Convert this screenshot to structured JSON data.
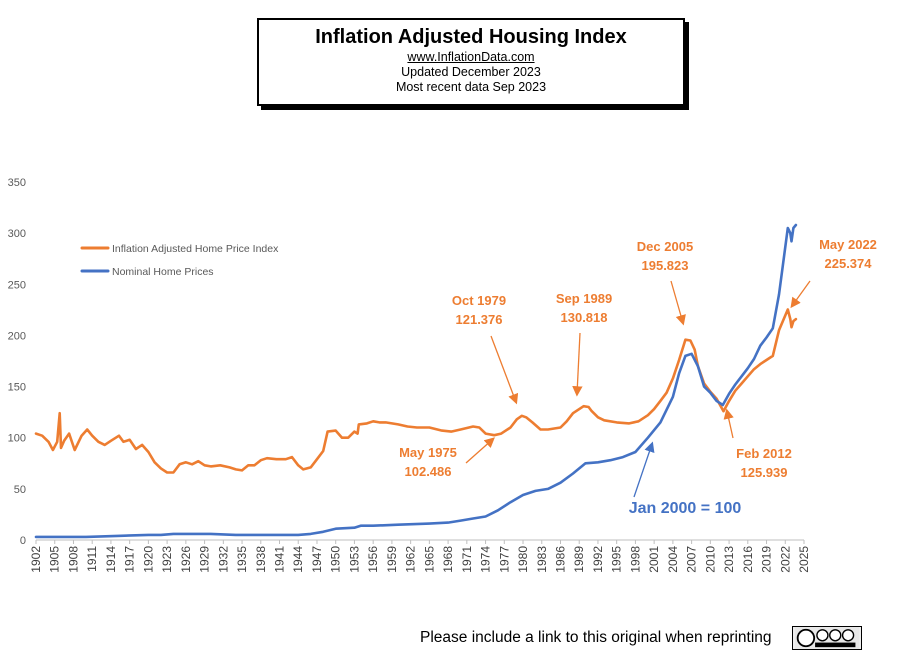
{
  "header": {
    "title": "Inflation Adjusted Housing Index",
    "website": "www.InflationData.com",
    "updated": "Updated  December 2023",
    "recent": "Most recent data Sep 2023"
  },
  "footer": {
    "note": "Please include a link to this original when reprinting"
  },
  "license_badge": "cc-by-nc-nd-icon",
  "colors": {
    "adjusted": "#ED7D31",
    "nominal": "#4472C4",
    "axis": "#555555"
  },
  "chart_data": {
    "type": "line",
    "xlim": [
      1902,
      2025
    ],
    "ylim": [
      0,
      350
    ],
    "yticks": [
      0,
      50,
      100,
      150,
      200,
      250,
      300,
      350
    ],
    "xticks": [
      "1902",
      "1905",
      "1908",
      "1911",
      "1914",
      "1917",
      "1920",
      "1923",
      "1926",
      "1929",
      "1932",
      "1935",
      "1938",
      "1941",
      "1944",
      "1947",
      "1950",
      "1953",
      "1956",
      "1959",
      "1962",
      "1965",
      "1968",
      "1971",
      "1974",
      "1977",
      "1980",
      "1983",
      "1986",
      "1989",
      "1992",
      "1995",
      "1998",
      "2001",
      "2004",
      "2007",
      "2010",
      "2013",
      "2016",
      "2019",
      "2022",
      "2025"
    ],
    "grid": false,
    "legend_position": "top-left",
    "series": [
      {
        "name": "Inflation Adjusted Home Price Index",
        "color": "#ED7D31",
        "points": [
          [
            1902,
            104
          ],
          [
            1903,
            102
          ],
          [
            1904,
            96
          ],
          [
            1904.7,
            88
          ],
          [
            1905.4,
            96
          ],
          [
            1905.8,
            124
          ],
          [
            1906.0,
            90
          ],
          [
            1906.5,
            97
          ],
          [
            1907.3,
            104
          ],
          [
            1908.2,
            88
          ],
          [
            1909.3,
            102
          ],
          [
            1910.2,
            108
          ],
          [
            1911.0,
            102
          ],
          [
            1912.0,
            96
          ],
          [
            1913.0,
            93
          ],
          [
            1914.0,
            97
          ],
          [
            1915.3,
            102
          ],
          [
            1916.0,
            96
          ],
          [
            1917.0,
            98
          ],
          [
            1918.0,
            89
          ],
          [
            1919.0,
            93
          ],
          [
            1920.0,
            86
          ],
          [
            1921.0,
            76
          ],
          [
            1922.0,
            70
          ],
          [
            1923.0,
            66
          ],
          [
            1924.0,
            66
          ],
          [
            1925.0,
            74
          ],
          [
            1926.0,
            76
          ],
          [
            1927.0,
            74
          ],
          [
            1928.0,
            77
          ],
          [
            1929.0,
            73
          ],
          [
            1930.0,
            72
          ],
          [
            1931.5,
            73
          ],
          [
            1933.0,
            71
          ],
          [
            1934.0,
            69
          ],
          [
            1935.0,
            68
          ],
          [
            1936.0,
            73
          ],
          [
            1937.0,
            73
          ],
          [
            1938.0,
            78
          ],
          [
            1939.0,
            80
          ],
          [
            1940.5,
            79
          ],
          [
            1942.0,
            79
          ],
          [
            1943.0,
            81
          ],
          [
            1944.0,
            73
          ],
          [
            1944.8,
            69
          ],
          [
            1946.0,
            71
          ],
          [
            1947.0,
            79
          ],
          [
            1948.0,
            87
          ],
          [
            1948.7,
            106
          ],
          [
            1950.0,
            107
          ],
          [
            1951.0,
            100
          ],
          [
            1952.0,
            100
          ],
          [
            1953.0,
            106
          ],
          [
            1953.5,
            104
          ],
          [
            1953.7,
            113
          ],
          [
            1955.0,
            114
          ],
          [
            1956.0,
            116
          ],
          [
            1957.0,
            115
          ],
          [
            1958.0,
            115
          ],
          [
            1959.0,
            114
          ],
          [
            1960.0,
            113
          ],
          [
            1961.5,
            111
          ],
          [
            1963.0,
            110
          ],
          [
            1965.0,
            110
          ],
          [
            1967.0,
            107
          ],
          [
            1968.5,
            106
          ],
          [
            1970.0,
            108
          ],
          [
            1972.0,
            111
          ],
          [
            1973.0,
            110
          ],
          [
            1974.0,
            104
          ],
          [
            1975.4,
            102.486
          ],
          [
            1976.5,
            104
          ],
          [
            1978.0,
            110
          ],
          [
            1979.0,
            118
          ],
          [
            1979.8,
            121.376
          ],
          [
            1980.5,
            120
          ],
          [
            1981.5,
            115
          ],
          [
            1982.8,
            108
          ],
          [
            1984.0,
            108
          ],
          [
            1986.0,
            110
          ],
          [
            1987.0,
            116
          ],
          [
            1988.0,
            124
          ],
          [
            1989.7,
            130.818
          ],
          [
            1990.5,
            130
          ],
          [
            1991.0,
            126
          ],
          [
            1992.0,
            120
          ],
          [
            1993.0,
            117
          ],
          [
            1995.0,
            115
          ],
          [
            1997.0,
            114
          ],
          [
            1998.5,
            116
          ],
          [
            2000.0,
            122
          ],
          [
            2001.0,
            128
          ],
          [
            2002.0,
            136
          ],
          [
            2003.0,
            144
          ],
          [
            2004.0,
            158
          ],
          [
            2005.0,
            176
          ],
          [
            2006.0,
            195.823
          ],
          [
            2006.8,
            195
          ],
          [
            2007.5,
            186
          ],
          [
            2008.0,
            170
          ],
          [
            2009.0,
            153
          ],
          [
            2010.0,
            145
          ],
          [
            2011.0,
            138
          ],
          [
            2012.1,
            125.939
          ],
          [
            2013.0,
            136
          ],
          [
            2014.0,
            146
          ],
          [
            2015.0,
            153
          ],
          [
            2016.0,
            160
          ],
          [
            2017.0,
            167
          ],
          [
            2018.0,
            172
          ],
          [
            2019.0,
            176
          ],
          [
            2020.0,
            180
          ],
          [
            2021.0,
            205
          ],
          [
            2022.4,
            225.374
          ],
          [
            2022.8,
            216
          ],
          [
            2023.0,
            208
          ],
          [
            2023.3,
            214
          ],
          [
            2023.7,
            216
          ]
        ]
      },
      {
        "name": "Nominal Home Prices",
        "color": "#4472C4",
        "points": [
          [
            1902,
            3
          ],
          [
            1910,
            3
          ],
          [
            1915,
            4
          ],
          [
            1920,
            5
          ],
          [
            1922,
            5
          ],
          [
            1924,
            6
          ],
          [
            1926,
            6
          ],
          [
            1930,
            6
          ],
          [
            1934,
            5
          ],
          [
            1936,
            5
          ],
          [
            1940,
            5
          ],
          [
            1944,
            5
          ],
          [
            1946,
            6
          ],
          [
            1948,
            8
          ],
          [
            1950,
            11
          ],
          [
            1953,
            12
          ],
          [
            1954,
            14
          ],
          [
            1956,
            14
          ],
          [
            1960,
            15
          ],
          [
            1965,
            16
          ],
          [
            1968,
            17
          ],
          [
            1970,
            19
          ],
          [
            1972,
            21
          ],
          [
            1974,
            23
          ],
          [
            1976,
            29
          ],
          [
            1978,
            37
          ],
          [
            1980,
            44
          ],
          [
            1982,
            48
          ],
          [
            1984,
            50
          ],
          [
            1986,
            56
          ],
          [
            1988,
            65
          ],
          [
            1990,
            75
          ],
          [
            1992,
            76
          ],
          [
            1994,
            78
          ],
          [
            1996,
            81
          ],
          [
            1998,
            86
          ],
          [
            2000,
            100
          ],
          [
            2002,
            115
          ],
          [
            2004,
            140
          ],
          [
            2005,
            163
          ],
          [
            2006,
            180
          ],
          [
            2007,
            182
          ],
          [
            2008,
            170
          ],
          [
            2009,
            150
          ],
          [
            2010,
            144
          ],
          [
            2011,
            136
          ],
          [
            2012,
            132
          ],
          [
            2013,
            143
          ],
          [
            2014,
            152
          ],
          [
            2015,
            160
          ],
          [
            2016,
            168
          ],
          [
            2017,
            177
          ],
          [
            2018,
            190
          ],
          [
            2019,
            198
          ],
          [
            2020,
            207
          ],
          [
            2021,
            240
          ],
          [
            2022.4,
            305
          ],
          [
            2022.8,
            300
          ],
          [
            2023.0,
            292
          ],
          [
            2023.3,
            305
          ],
          [
            2023.7,
            308
          ]
        ]
      }
    ],
    "annotations": [
      {
        "id": "may-1975",
        "lines": [
          "May 1975",
          "102.486"
        ],
        "x": 1975.4,
        "y": 102.486,
        "color": "#ED7D31"
      },
      {
        "id": "oct-1979",
        "lines": [
          "Oct 1979",
          "121.376"
        ],
        "x": 1979.8,
        "y": 121.376,
        "color": "#ED7D31"
      },
      {
        "id": "sep-1989",
        "lines": [
          "Sep 1989",
          "130.818"
        ],
        "x": 1989.7,
        "y": 130.818,
        "color": "#ED7D31"
      },
      {
        "id": "dec-2005",
        "lines": [
          "Dec 2005",
          "195.823"
        ],
        "x": 2006.0,
        "y": 195.823,
        "color": "#ED7D31"
      },
      {
        "id": "feb-2012",
        "lines": [
          "Feb 2012",
          "125.939"
        ],
        "x": 2012.1,
        "y": 125.939,
        "color": "#ED7D31"
      },
      {
        "id": "may-2022",
        "lines": [
          "May 2022",
          "225.374"
        ],
        "x": 2022.4,
        "y": 225.374,
        "color": "#ED7D31"
      },
      {
        "id": "jan-2000",
        "lines": [
          "Jan 2000 = 100"
        ],
        "x": 2000,
        "y": 100,
        "color": "#4472C4"
      }
    ]
  }
}
